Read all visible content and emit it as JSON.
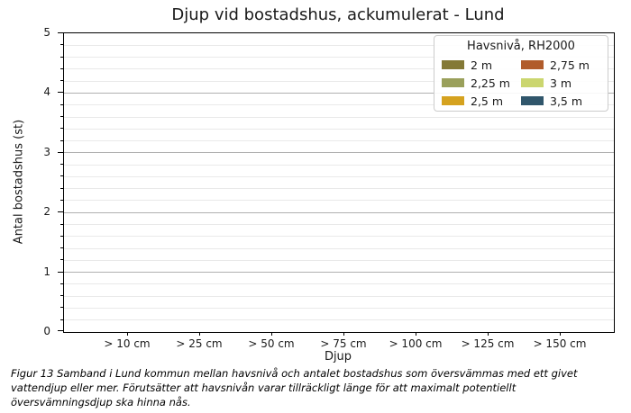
{
  "figure": {
    "caption_lines": [
      "Figur 13 Samband i Lund kommun mellan havsnivå och antalet bostadshus som översvämmas med ett givet",
      "vattendjup eller mer. Förutsätter att havsnivån varar tillräckligt länge för att maximalt potentiellt",
      "översvämningsdjup ska hinna nås."
    ]
  },
  "chart_data": {
    "type": "bar",
    "title": "Djup vid bostadshus, ackumulerat - Lund",
    "xlabel": "Djup",
    "ylabel": "Antal bostadshus (st)",
    "categories": [
      "> 10 cm",
      "> 25 cm",
      "> 50 cm",
      "> 75 cm",
      "> 100 cm",
      "> 125 cm",
      "> 150 cm"
    ],
    "series": [
      {
        "name": "2 m",
        "color": "#847936",
        "values": [
          0,
          0,
          0,
          0,
          0,
          0,
          0
        ]
      },
      {
        "name": "2,25 m",
        "color": "#9aa05b",
        "values": [
          0,
          0,
          0,
          0,
          0,
          0,
          0
        ]
      },
      {
        "name": "2,5 m",
        "color": "#d5a21f",
        "values": [
          0,
          0,
          0,
          0,
          0,
          0,
          0
        ]
      },
      {
        "name": "2,75 m",
        "color": "#b15c2b",
        "values": [
          0,
          0,
          0,
          0,
          0,
          0,
          0
        ]
      },
      {
        "name": "3 m",
        "color": "#cbd66f",
        "values": [
          0,
          0,
          0,
          0,
          0,
          0,
          0
        ]
      },
      {
        "name": "3,5 m",
        "color": "#30566b",
        "values": [
          0,
          0,
          0,
          0,
          0,
          0,
          0
        ]
      }
    ],
    "legend": {
      "title": "Havsnivå, RH2000",
      "position": "upper right",
      "columns": 2
    },
    "ylim": [
      0,
      5
    ],
    "yticks": [
      0,
      1,
      2,
      3,
      4,
      5
    ],
    "ytick_minor_step": 0.2,
    "grid": true,
    "grid_major_color": "#b0b0b0",
    "grid_minor_color": "#e9e9e9"
  }
}
